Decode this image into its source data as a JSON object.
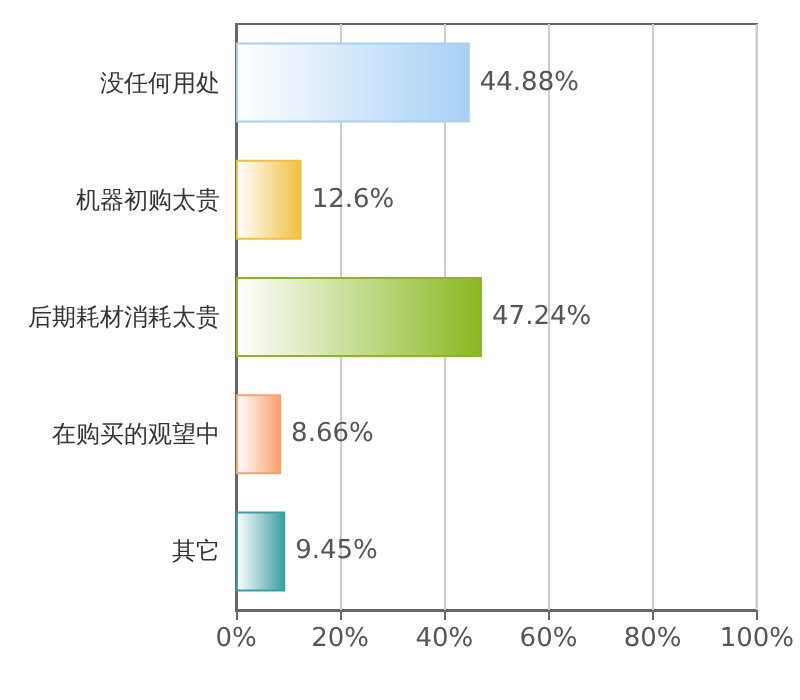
{
  "chart_data": {
    "type": "bar",
    "orientation": "horizontal",
    "categories": [
      "没任何用处",
      "机器初购太贵",
      "后期耗材消耗太贵",
      "在购买的观望中",
      "其它"
    ],
    "values": [
      44.88,
      12.6,
      47.24,
      8.66,
      9.45
    ],
    "colors": [
      "#a8d0f5",
      "#f0c040",
      "#8ab820",
      "#f8a070",
      "#3a9ea0"
    ],
    "value_labels": [
      "44.88%",
      "12.6%",
      "47.24%",
      "8.66%",
      "9.45%"
    ],
    "xlim": [
      0,
      100
    ],
    "xticks": [
      {
        "value": 0,
        "label": "0%"
      },
      {
        "value": 20,
        "label": "20%"
      },
      {
        "value": 40,
        "label": "40%"
      },
      {
        "value": 60,
        "label": "60%"
      },
      {
        "value": 80,
        "label": "80%"
      },
      {
        "value": 100,
        "label": "100%"
      }
    ],
    "grid": "x"
  }
}
